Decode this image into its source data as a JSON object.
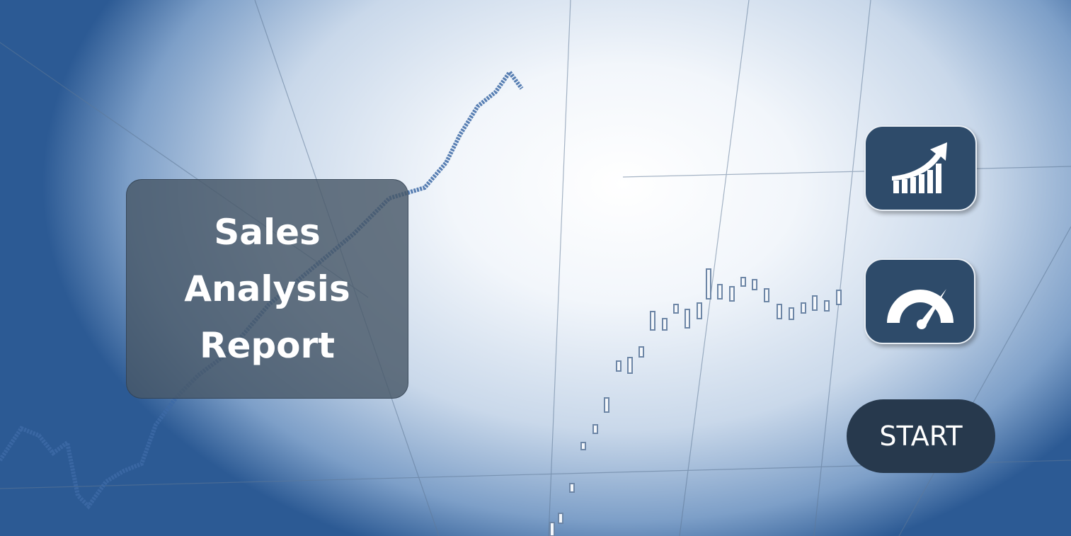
{
  "title": "Sales Analysis Report",
  "start_button": {
    "label": "START"
  }
}
